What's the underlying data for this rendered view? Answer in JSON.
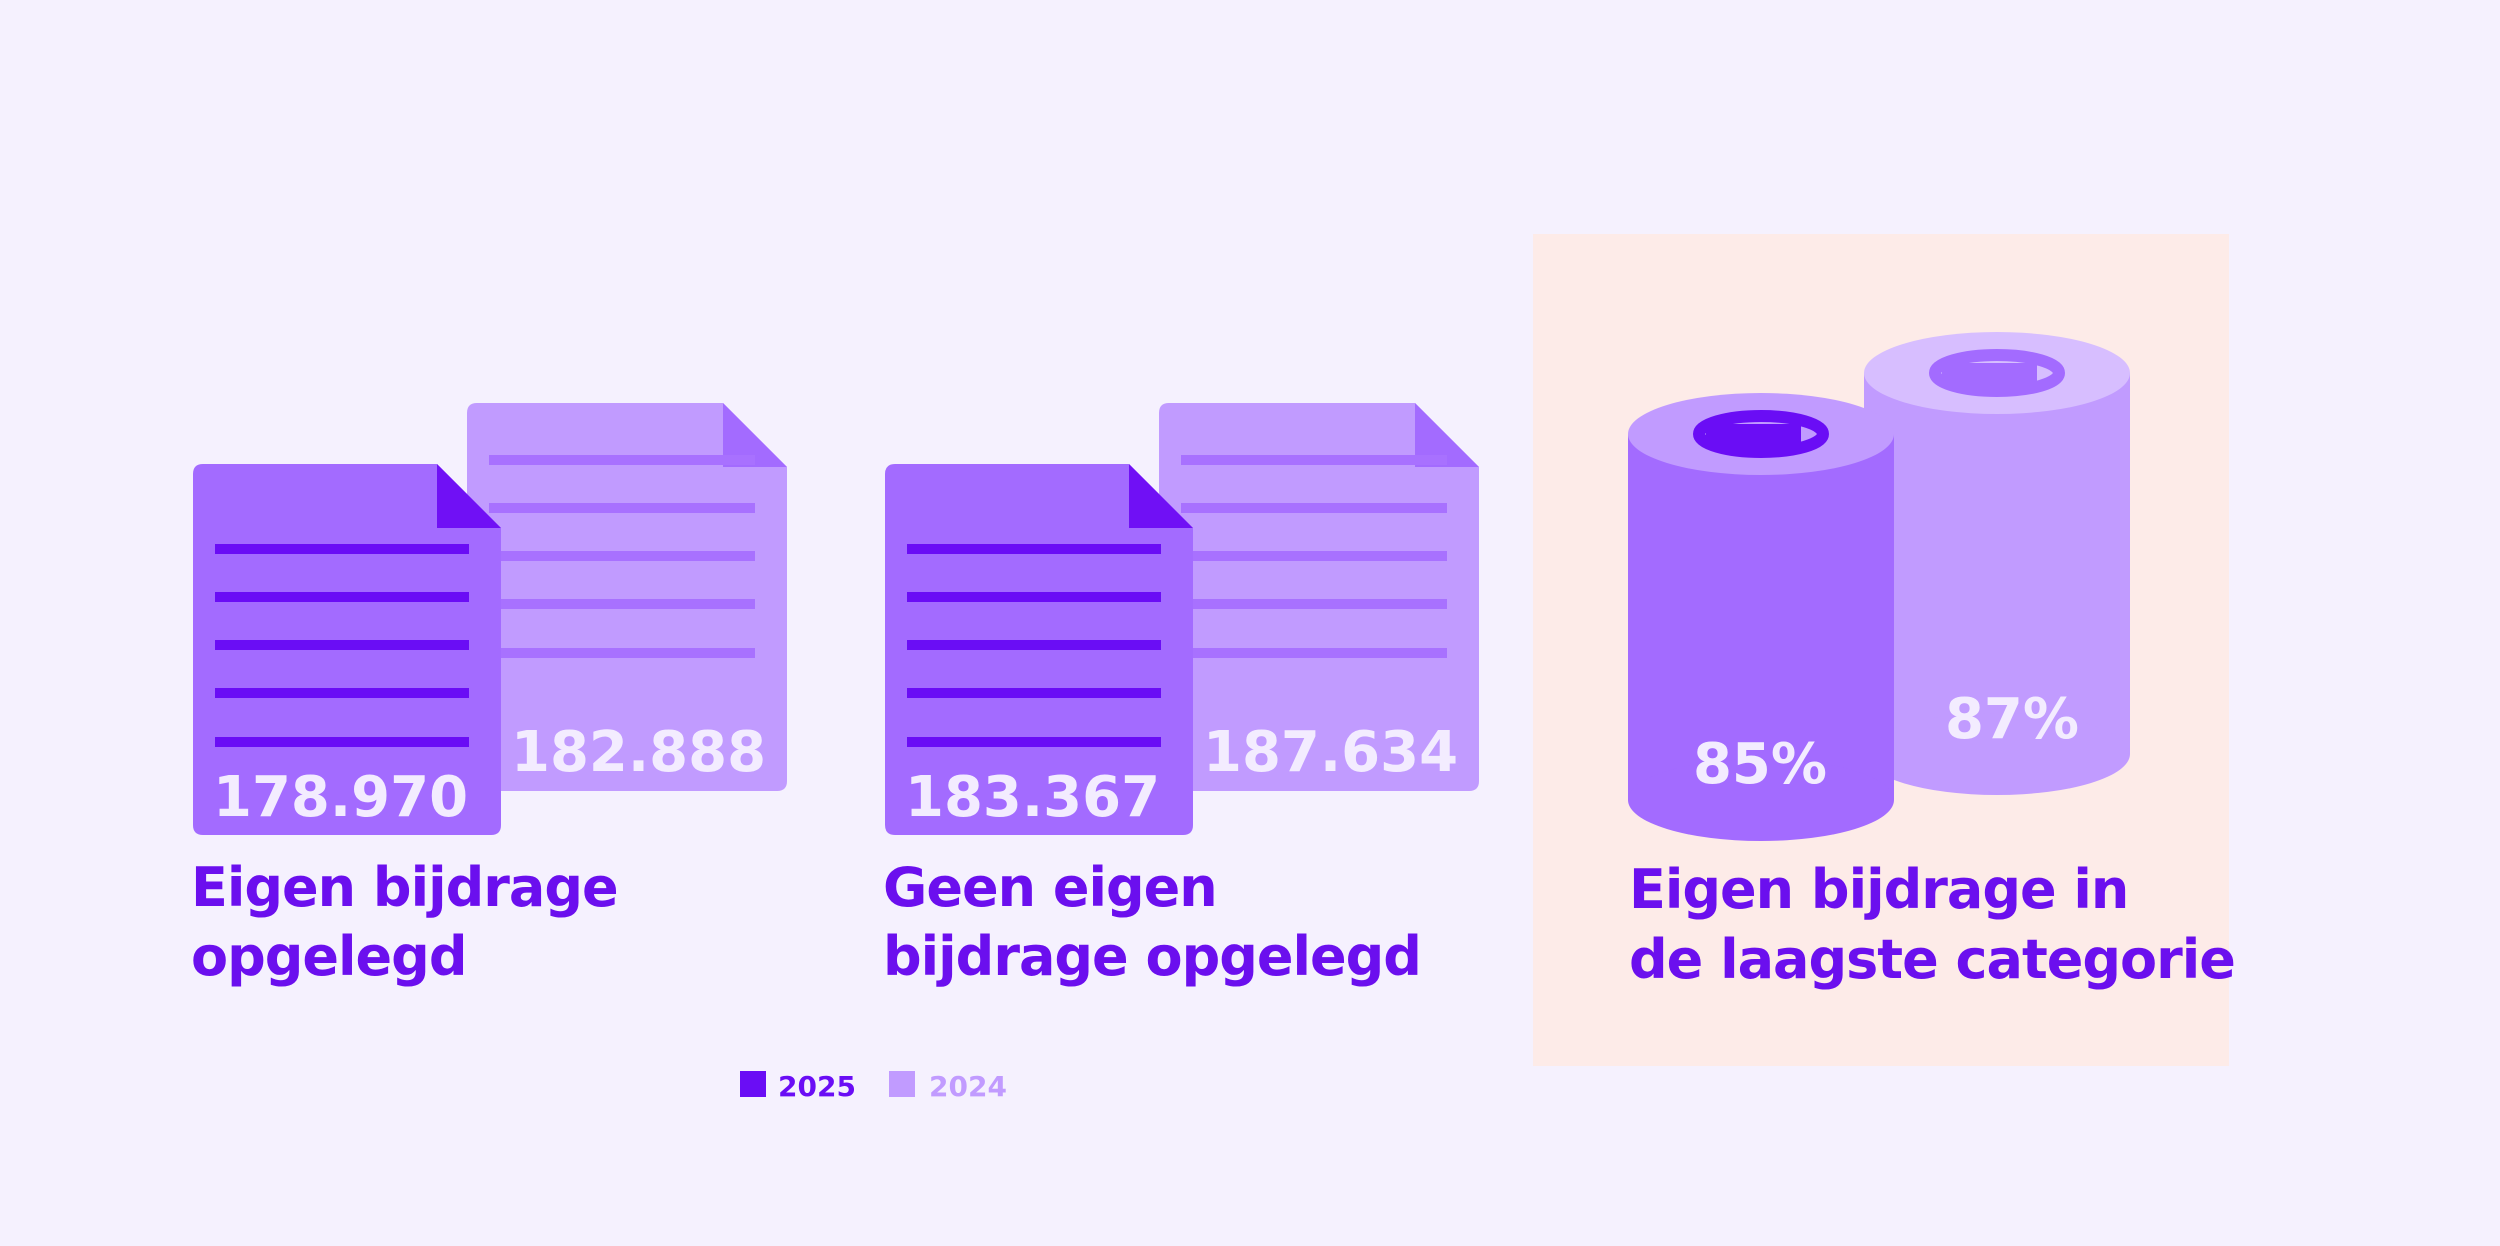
{
  "panels": [
    {
      "label_lines": [
        "Eigen bijdrage",
        "opgelegd"
      ],
      "values": [
        "178.970",
        "182.888"
      ]
    },
    {
      "label_lines": [
        "Geen eigen",
        "bijdrage opgelegd"
      ],
      "values": [
        "183.367",
        "187.634"
      ]
    },
    {
      "label_lines": [
        "Eigen bijdrage in",
        "de laagste categorie"
      ],
      "values": [
        "85%",
        "87%"
      ]
    }
  ],
  "legend": [
    "2025",
    "2024"
  ]
}
